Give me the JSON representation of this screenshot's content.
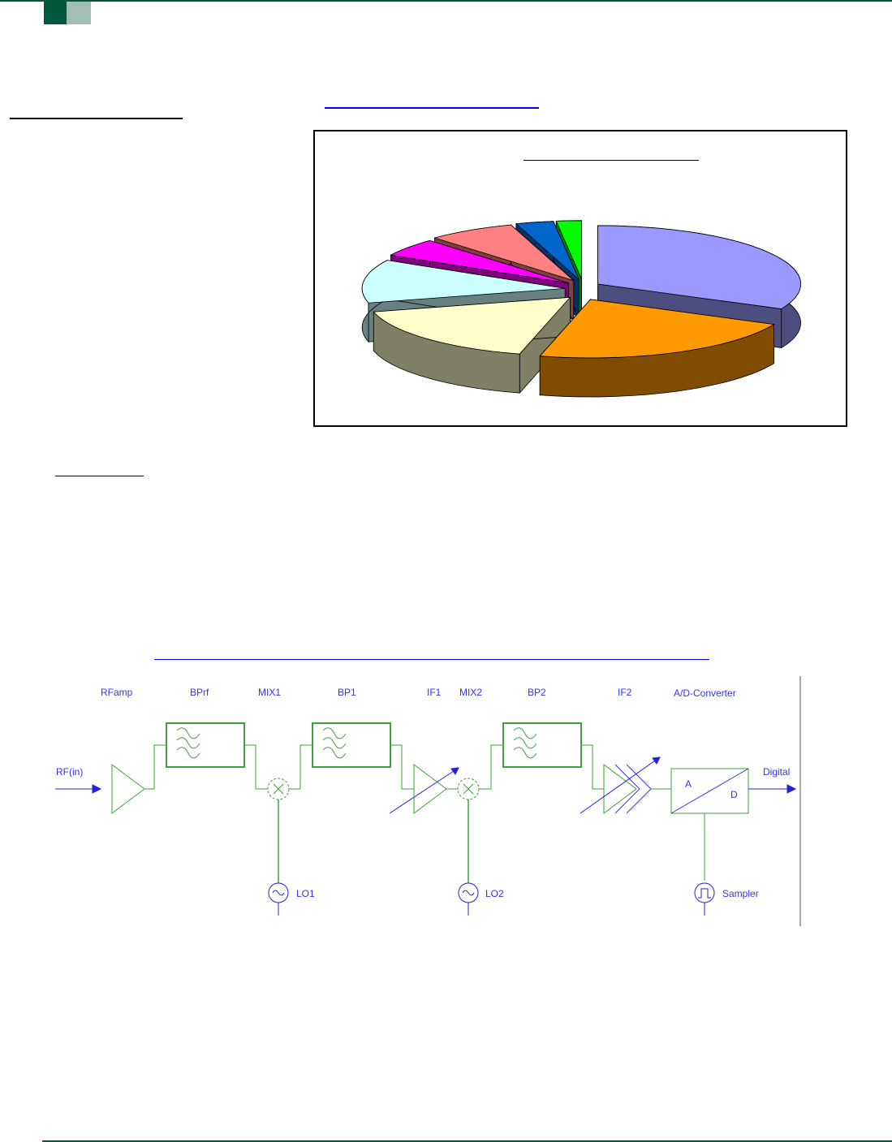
{
  "header": {
    "accent_dark": "#03573c",
    "accent_light": "#a2bfb4"
  },
  "chart_data": {
    "type": "pie",
    "style": "3d-exploded",
    "title": "",
    "legend": "none",
    "start": "top, clockwise",
    "values": [
      32,
      22,
      17,
      12,
      5,
      7,
      3,
      2
    ],
    "colors": [
      "#9999FF",
      "#FF9900",
      "#FFFFCC",
      "#CCFFFF",
      "#FF00FF",
      "#FF8080",
      "#0066CC",
      "#00FF00"
    ],
    "side_colors": [
      "#4d4d80",
      "#804c00",
      "#808066",
      "#688080",
      "#800080",
      "#804040",
      "#003366",
      "#008000"
    ]
  },
  "diagram": {
    "labels": {
      "rfamp": "RFamp",
      "bprf": "BPrf",
      "mix1": "MIX1",
      "bp1": "BP1",
      "if1": "IF1",
      "mix2": "MIX2",
      "bp2": "BP2",
      "if2": "IF2",
      "adc": "A/D-Converter",
      "rf_in": "RF(in)",
      "digital": "Digital",
      "a": "A",
      "d": "D",
      "lo1": "LO1",
      "lo2": "LO2",
      "sampler": "Sampler"
    },
    "line_color": "#3aa33a",
    "signal_color": "#2222dd"
  }
}
